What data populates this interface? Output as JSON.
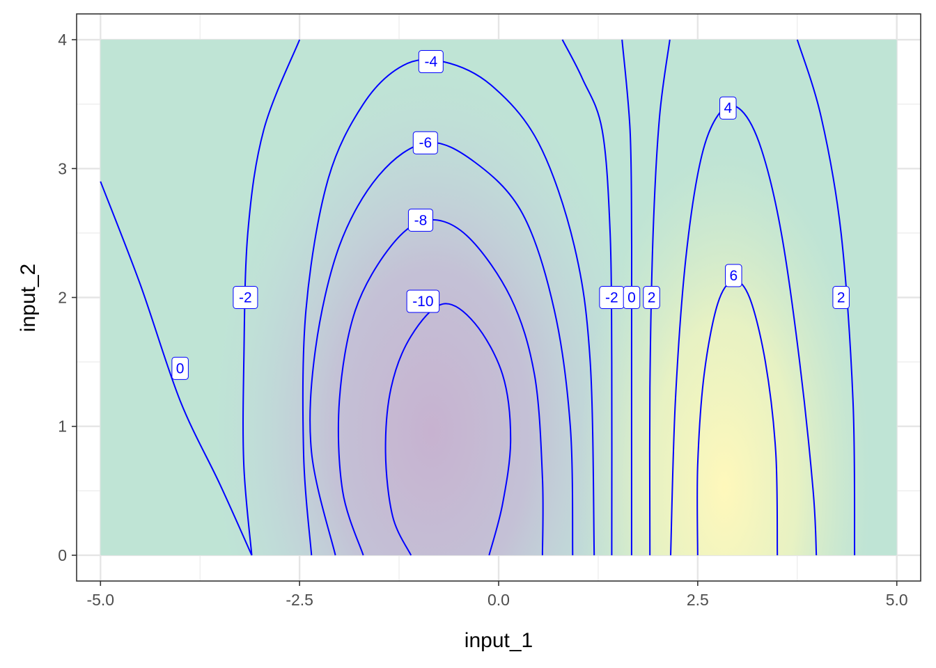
{
  "chart_data": {
    "type": "contour",
    "title": "",
    "xlabel": "input_1",
    "ylabel": "input_2",
    "xlim": [
      -5.3,
      5.3
    ],
    "ylim": [
      -0.2,
      4.2
    ],
    "data_extent": {
      "x": [
        -5,
        5
      ],
      "y": [
        0,
        4
      ]
    },
    "grid": true,
    "x_ticks": [
      {
        "value": -5.0,
        "label": "-5.0"
      },
      {
        "value": -2.5,
        "label": "-2.5"
      },
      {
        "value": 0.0,
        "label": "0.0"
      },
      {
        "value": 2.5,
        "label": "2.5"
      },
      {
        "value": 5.0,
        "label": "5.0"
      }
    ],
    "y_ticks": [
      {
        "value": 0,
        "label": "0"
      },
      {
        "value": 1,
        "label": "1"
      },
      {
        "value": 2,
        "label": "2"
      },
      {
        "value": 3,
        "label": "3"
      },
      {
        "value": 4,
        "label": "4"
      }
    ],
    "fill_palette": [
      "#c7b2d0",
      "#c1d8e0",
      "#bfe4d5",
      "#fff8bb"
    ],
    "line_color": "#0000ff",
    "contour_levels": [
      {
        "level": -10,
        "points": [
          [
            -1.1,
            0
          ],
          [
            -1.33,
            0.3
          ],
          [
            -1.42,
            0.8
          ],
          [
            -1.35,
            1.3
          ],
          [
            -1.1,
            1.7
          ],
          [
            -0.7,
            1.95
          ],
          [
            -0.3,
            1.8
          ],
          [
            0.05,
            1.4
          ],
          [
            0.15,
            0.9
          ],
          [
            0.05,
            0.4
          ],
          [
            -0.12,
            0
          ]
        ],
        "labels": [
          {
            "x": -0.95,
            "y": 1.97,
            "text": "-10"
          }
        ]
      },
      {
        "level": -8,
        "points": [
          [
            -1.7,
            0
          ],
          [
            -1.96,
            0.5
          ],
          [
            -2.0,
            1.2
          ],
          [
            -1.8,
            1.9
          ],
          [
            -1.35,
            2.4
          ],
          [
            -0.9,
            2.6
          ],
          [
            -0.4,
            2.48
          ],
          [
            0.15,
            2.0
          ],
          [
            0.45,
            1.4
          ],
          [
            0.55,
            0.6
          ],
          [
            0.55,
            0
          ]
        ],
        "labels": [
          {
            "x": -0.98,
            "y": 2.6,
            "text": "-8"
          }
        ]
      },
      {
        "level": -6,
        "points": [
          [
            -2.05,
            0
          ],
          [
            -2.35,
            0.8
          ],
          [
            -2.3,
            1.6
          ],
          [
            -2.0,
            2.4
          ],
          [
            -1.5,
            2.95
          ],
          [
            -0.9,
            3.2
          ],
          [
            -0.3,
            3.05
          ],
          [
            0.3,
            2.65
          ],
          [
            0.7,
            1.9
          ],
          [
            0.9,
            1.0
          ],
          [
            0.93,
            0
          ]
        ],
        "labels": [
          {
            "x": -0.92,
            "y": 3.2,
            "text": "-6"
          }
        ]
      },
      {
        "level": -4,
        "points": [
          [
            -2.35,
            0
          ],
          [
            -2.45,
            0.8
          ],
          [
            -2.42,
            1.9
          ],
          [
            -2.15,
            2.9
          ],
          [
            -1.7,
            3.5
          ],
          [
            -1.2,
            3.8
          ],
          [
            -0.7,
            3.83
          ],
          [
            -0.1,
            3.65
          ],
          [
            0.5,
            3.2
          ],
          [
            0.95,
            2.4
          ],
          [
            1.15,
            1.5
          ],
          [
            1.2,
            0
          ]
        ],
        "labels": [
          {
            "x": -0.85,
            "y": 3.83,
            "text": "-4"
          }
        ]
      },
      {
        "level": -2,
        "points": [
          [
            -3.1,
            0
          ],
          [
            -3.2,
            0.7
          ],
          [
            -3.2,
            1.5
          ],
          [
            -3.15,
            2.5
          ],
          [
            -2.95,
            3.3
          ],
          [
            -2.5,
            4.0
          ]
        ],
        "labels": [
          {
            "x": -3.18,
            "y": 2.0,
            "text": "-2"
          }
        ]
      },
      {
        "level": -2,
        "points": [
          [
            1.42,
            0
          ],
          [
            1.42,
            1.5
          ],
          [
            1.4,
            2.5
          ],
          [
            1.3,
            3.3
          ],
          [
            1.05,
            3.7
          ],
          [
            0.8,
            4.0
          ]
        ],
        "labels": [
          {
            "x": 1.42,
            "y": 2.0,
            "text": "-2"
          }
        ]
      },
      {
        "level": 0,
        "points": [
          [
            -5.0,
            2.9
          ],
          [
            -4.5,
            2.1
          ],
          [
            -4.0,
            1.2
          ],
          [
            -3.5,
            0.55
          ],
          [
            -3.1,
            0
          ]
        ],
        "labels": [
          {
            "x": -4.0,
            "y": 1.45,
            "text": "0"
          }
        ]
      },
      {
        "level": 0,
        "points": [
          [
            1.67,
            0
          ],
          [
            1.67,
            1.5
          ],
          [
            1.67,
            2.5
          ],
          [
            1.65,
            3.3
          ],
          [
            1.55,
            4.0
          ]
        ],
        "labels": [
          {
            "x": 1.67,
            "y": 2.0,
            "text": "0"
          }
        ]
      },
      {
        "level": 2,
        "points": [
          [
            1.9,
            0
          ],
          [
            1.9,
            1.3
          ],
          [
            1.94,
            2.5
          ],
          [
            2.02,
            3.4
          ],
          [
            2.15,
            4.0
          ]
        ],
        "labels": [
          {
            "x": 1.92,
            "y": 2.0,
            "text": "2"
          }
        ]
      },
      {
        "level": 2,
        "points": [
          [
            4.47,
            0
          ],
          [
            4.45,
            1.2
          ],
          [
            4.3,
            2.5
          ],
          [
            4.05,
            3.4
          ],
          [
            3.75,
            4.0
          ]
        ],
        "labels": [
          {
            "x": 4.3,
            "y": 2.0,
            "text": "2"
          }
        ]
      },
      {
        "level": 4,
        "points": [
          [
            2.16,
            0
          ],
          [
            2.22,
            1.2
          ],
          [
            2.35,
            2.3
          ],
          [
            2.55,
            3.1
          ],
          [
            2.8,
            3.45
          ],
          [
            3.05,
            3.45
          ],
          [
            3.3,
            3.15
          ],
          [
            3.55,
            2.5
          ],
          [
            3.78,
            1.5
          ],
          [
            3.95,
            0.5
          ],
          [
            3.99,
            0
          ]
        ],
        "labels": [
          {
            "x": 2.88,
            "y": 3.47,
            "text": "4"
          }
        ]
      },
      {
        "level": 6,
        "points": [
          [
            2.5,
            0
          ],
          [
            2.5,
            0.7
          ],
          [
            2.58,
            1.4
          ],
          [
            2.75,
            1.95
          ],
          [
            2.95,
            2.13
          ],
          [
            3.15,
            2.0
          ],
          [
            3.35,
            1.5
          ],
          [
            3.48,
            0.8
          ],
          [
            3.5,
            0
          ]
        ],
        "labels": [
          {
            "x": 2.95,
            "y": 2.17,
            "text": "6"
          }
        ]
      }
    ]
  }
}
